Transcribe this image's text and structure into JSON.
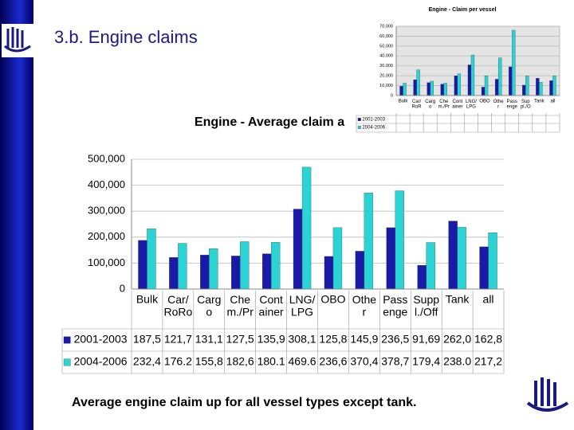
{
  "slide_title": "3.b. Engine claims",
  "footer": "Average engine claim up for all vessel types except tank.",
  "chart_data": [
    {
      "type": "bar",
      "title": "Engine - Average claim a",
      "categories": [
        "Bulk",
        "Car/\nRoRo",
        "Carg\no",
        "Che\nm./Pr",
        "Cont\nainer",
        "LNG/\nLPG",
        "OBO",
        "Othe\nr",
        "Pass\nenge",
        "Supp\nl./Off",
        "Tank",
        "all"
      ],
      "series": [
        {
          "name": "2001-2003",
          "color": "#1a1aa8",
          "values": [
            187500,
            121700,
            131100,
            127500,
            135900,
            308100,
            125800,
            145900,
            236500,
            91690,
            262000,
            162800
          ],
          "value_labels": [
            "187,5",
            "121,7",
            "131,1",
            "127,5",
            "135,9",
            "308,1",
            "125,8",
            "145,9",
            "236,5",
            "91,69",
            "262,0",
            "162,8"
          ]
        },
        {
          "name": "2004-2006",
          "color": "#2ad4d4",
          "values": [
            232400,
            176200,
            155800,
            182600,
            180100,
            469600,
            236600,
            370400,
            378700,
            179400,
            238000,
            217200
          ],
          "value_labels": [
            "232,4",
            "176.2",
            "155,8",
            "182,6",
            "180.1",
            "469.6",
            "236,6",
            "370,4",
            "378,7",
            "179,4",
            "238.0",
            "217,2"
          ]
        }
      ],
      "ylim": [
        0,
        500000
      ],
      "yticks": [
        0,
        {
          "value": 100000,
          "label": "100,000"
        },
        {
          "value": 200000,
          "label": "200,000"
        },
        {
          "value": 300000,
          "label": "300,000"
        },
        {
          "value": 400000,
          "label": "400,000"
        },
        {
          "value": 500000,
          "label": "500,000"
        }
      ],
      "grid": true
    },
    {
      "type": "bar",
      "title": "Engine - Claim per vessel",
      "categories": [
        "Bulk",
        "Car/\nRoR",
        "Carg\no",
        "Che\nm./Pr",
        "Cont\nainer",
        "LNG/\nLPG",
        "OBO",
        "Othe\nr",
        "Pass\nenge",
        "Sup\npl./O",
        "Tank",
        "all"
      ],
      "series": [
        {
          "name": "2001-2003",
          "color": "#1a1aa8",
          "values": [
            9500,
            16000,
            13000,
            11500,
            20000,
            31000,
            8500,
            16500,
            29000,
            10500,
            17500,
            15000
          ]
        },
        {
          "name": "2004-2006",
          "color": "#2ad4d4",
          "values": [
            12500,
            26000,
            14500,
            12500,
            22000,
            41000,
            20000,
            38000,
            66000,
            20000,
            13500,
            20000
          ]
        }
      ],
      "ylim": [
        0,
        70000
      ],
      "yticks": [
        0,
        {
          "value": 10000,
          "label": "10,000"
        },
        {
          "value": 20000,
          "label": "20,000"
        },
        {
          "value": 30000,
          "label": "30,000"
        },
        {
          "value": 40000,
          "label": "40,000"
        },
        {
          "value": 50000,
          "label": "50,000"
        },
        {
          "value": 60000,
          "label": "60,000"
        },
        {
          "value": 70000,
          "label": "70,000"
        }
      ],
      "grid": true
    }
  ]
}
